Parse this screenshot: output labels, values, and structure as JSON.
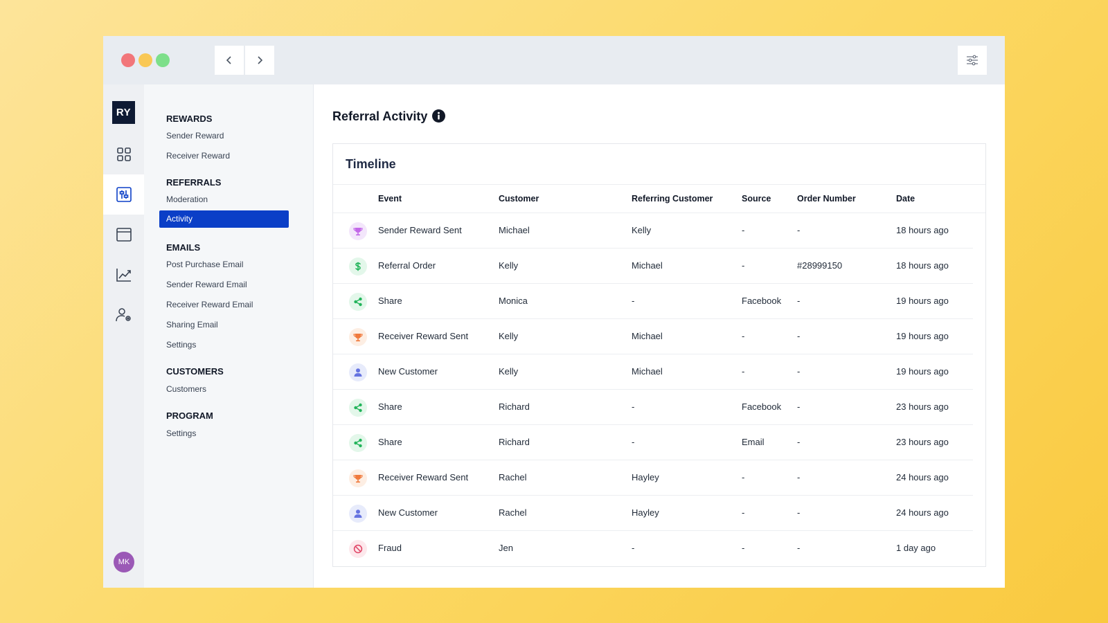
{
  "app": {
    "brand": "RY",
    "user_initials": "MK"
  },
  "colors": {
    "accent": "#0b3fc7",
    "brand_bg": "#0e1a33",
    "avatar_bg": "#9b59b6"
  },
  "rail": {
    "items": [
      {
        "icon": "grid-icon"
      },
      {
        "icon": "sliders-panel-icon",
        "active": true
      },
      {
        "icon": "browser-window-icon"
      },
      {
        "icon": "chart-line-icon"
      },
      {
        "icon": "user-settings-icon"
      }
    ]
  },
  "sidebar": {
    "sections": [
      {
        "title": "REWARDS",
        "items": [
          "Sender Reward",
          "Receiver Reward"
        ]
      },
      {
        "title": "REFERRALS",
        "items": [
          "Moderation",
          "Activity"
        ]
      },
      {
        "title": "EMAILS",
        "items": [
          "Post Purchase Email",
          "Sender Reward Email",
          "Receiver Reward Email",
          "Sharing Email",
          "Settings"
        ]
      },
      {
        "title": "CUSTOMERS",
        "items": [
          "Customers"
        ]
      },
      {
        "title": "PROGRAM",
        "items": [
          "Settings"
        ]
      }
    ],
    "active_item": "Activity"
  },
  "main": {
    "title": "Referral Activity",
    "card_title": "Timeline",
    "columns": [
      "Event",
      "Customer",
      "Referring Customer",
      "Source",
      "Order Number",
      "Date"
    ],
    "rows": [
      {
        "icon": "trophy-icon",
        "tone": "purple",
        "event": "Sender Reward Sent",
        "customer": "Michael",
        "referring": "Kelly",
        "source": "-",
        "order": "-",
        "date": "18 hours ago"
      },
      {
        "icon": "dollar-icon",
        "tone": "green",
        "event": "Referral Order",
        "customer": "Kelly",
        "referring": "Michael",
        "source": "-",
        "order": "#28999150",
        "date": "18 hours ago"
      },
      {
        "icon": "share-icon",
        "tone": "green",
        "event": "Share",
        "customer": "Monica",
        "referring": "-",
        "source": "Facebook",
        "order": "-",
        "date": "19 hours ago"
      },
      {
        "icon": "trophy-icon",
        "tone": "orange",
        "event": "Receiver Reward Sent",
        "customer": "Kelly",
        "referring": "Michael",
        "source": "-",
        "order": "-",
        "date": "19 hours ago"
      },
      {
        "icon": "user-icon",
        "tone": "blue",
        "event": "New Customer",
        "customer": "Kelly",
        "referring": "Michael",
        "source": "-",
        "order": "-",
        "date": "19 hours ago"
      },
      {
        "icon": "share-icon",
        "tone": "green",
        "event": "Share",
        "customer": "Richard",
        "referring": "-",
        "source": "Facebook",
        "order": "-",
        "date": "23 hours ago"
      },
      {
        "icon": "share-icon",
        "tone": "green",
        "event": "Share",
        "customer": "Richard",
        "referring": "-",
        "source": "Email",
        "order": "-",
        "date": "23 hours ago"
      },
      {
        "icon": "trophy-icon",
        "tone": "orange",
        "event": "Receiver Reward Sent",
        "customer": "Rachel",
        "referring": "Hayley",
        "source": "-",
        "order": "-",
        "date": "24 hours ago"
      },
      {
        "icon": "user-icon",
        "tone": "blue",
        "event": "New Customer",
        "customer": "Rachel",
        "referring": "Hayley",
        "source": "-",
        "order": "-",
        "date": "24 hours ago"
      },
      {
        "icon": "ban-icon",
        "tone": "red",
        "event": "Fraud",
        "customer": "Jen",
        "referring": "-",
        "source": "-",
        "order": "-",
        "date": "1 day ago"
      }
    ]
  }
}
